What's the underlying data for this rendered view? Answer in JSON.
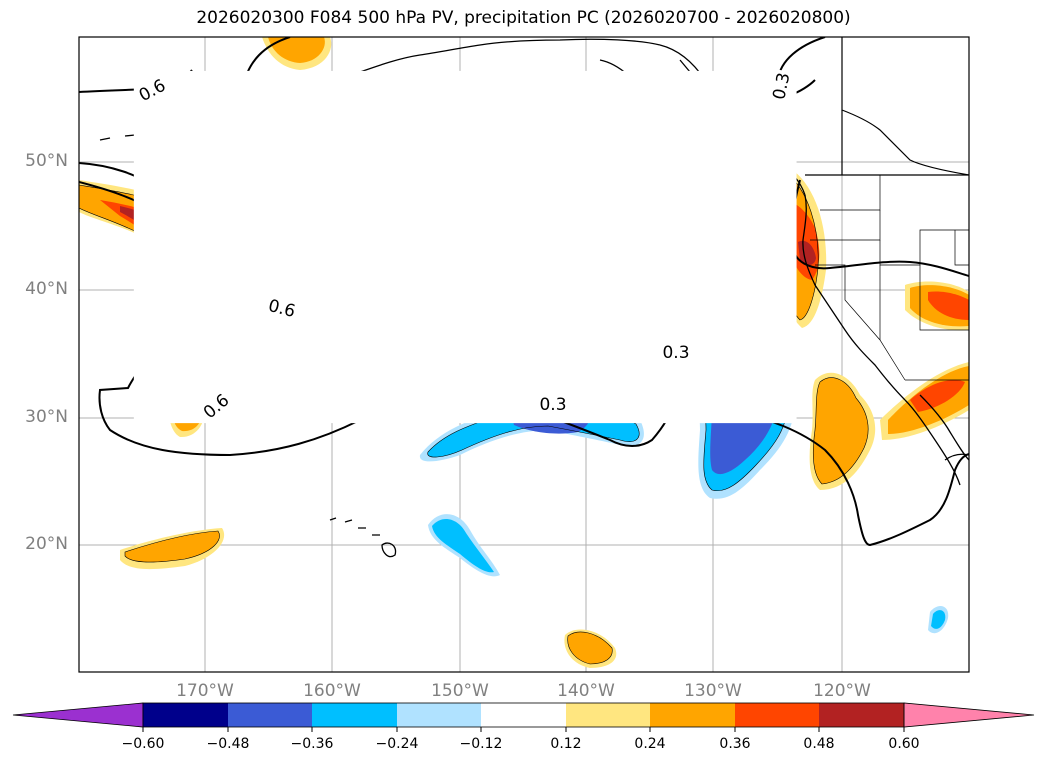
{
  "title": "2026020300 F084 500 hPa PV, precipitation PC (2026020700 - 2026020800)",
  "lat_labels": [
    "50°N",
    "40°N",
    "30°N",
    "20°N"
  ],
  "lon_labels": [
    "170°W",
    "160°W",
    "150°W",
    "140°W",
    "130°W",
    "120°W"
  ],
  "contour_labels": [
    "0.6",
    "0.6",
    "0.3",
    "0.3",
    "0.3",
    "0.6"
  ],
  "colorbar": {
    "ticks": [
      "−0.60",
      "−0.48",
      "−0.36",
      "−0.24",
      "−0.12",
      "0.12",
      "0.24",
      "0.36",
      "0.48",
      "0.60"
    ],
    "colors": [
      "#9b30d0",
      "#00008b",
      "#3b5bd5",
      "#00bfff",
      "#b0e2ff",
      "#ffffff",
      "#ffe680",
      "#ffa500",
      "#ff4500",
      "#b22222",
      "#ff82ab"
    ]
  },
  "colors": {
    "pos_light": "#ffe680",
    "pos_orange": "#ffa500",
    "pos_red": "#ff4500",
    "pos_dark": "#b22222",
    "neg_light": "#b0e2ff",
    "neg_cyan": "#00bfff",
    "neg_blue": "#3b5bd5",
    "neg_navy": "#00008b"
  }
}
